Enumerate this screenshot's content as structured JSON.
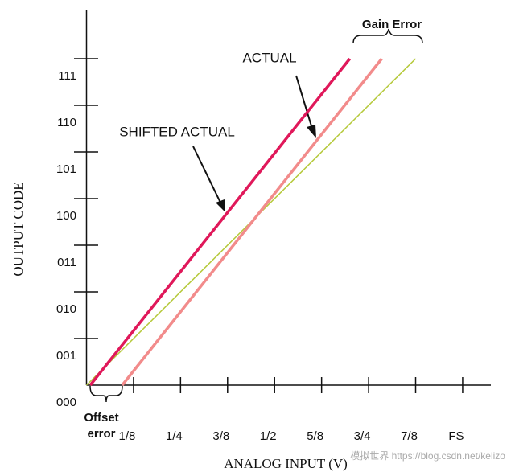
{
  "chart_data": {
    "type": "line",
    "x_label": "ANALOG INPUT (V)",
    "y_label": "OUTPUT CODE",
    "xlim": [
      0,
      1.075
    ],
    "ylim": [
      0,
      8
    ],
    "xticks": [
      {
        "value": 0.125,
        "label": "1/8"
      },
      {
        "value": 0.25,
        "label": "1/4"
      },
      {
        "value": 0.375,
        "label": "3/8"
      },
      {
        "value": 0.5,
        "label": "1/2"
      },
      {
        "value": 0.625,
        "label": "5/8"
      },
      {
        "value": 0.75,
        "label": "3/4"
      },
      {
        "value": 0.875,
        "label": "7/8"
      },
      {
        "value": 1,
        "label": "FS"
      }
    ],
    "yticks": [
      {
        "value": 0,
        "label": "000"
      },
      {
        "value": 1,
        "label": "001"
      },
      {
        "value": 2,
        "label": "010"
      },
      {
        "value": 3,
        "label": "011"
      },
      {
        "value": 4,
        "label": "100"
      },
      {
        "value": 5,
        "label": "101"
      },
      {
        "value": 6,
        "label": "110"
      },
      {
        "value": 7,
        "label": "111"
      }
    ],
    "series": [
      {
        "color": "#b5c93a",
        "x": [
          0,
          0.875
        ],
        "values": [
          0,
          7
        ]
      },
      {
        "name": "ACTUAL",
        "color": "#f28b8b",
        "x": [
          0.095,
          0.785
        ],
        "values": [
          0,
          7
        ]
      },
      {
        "name": "SHIFTED ACTUAL",
        "color": "#e0185a",
        "x": [
          0.01,
          0.7
        ],
        "values": [
          0,
          7
        ]
      }
    ],
    "annotations": [
      "Gain Error",
      "Offset error"
    ],
    "watermark": "模拟世界 https://blog.csdn.net/kelizo"
  }
}
